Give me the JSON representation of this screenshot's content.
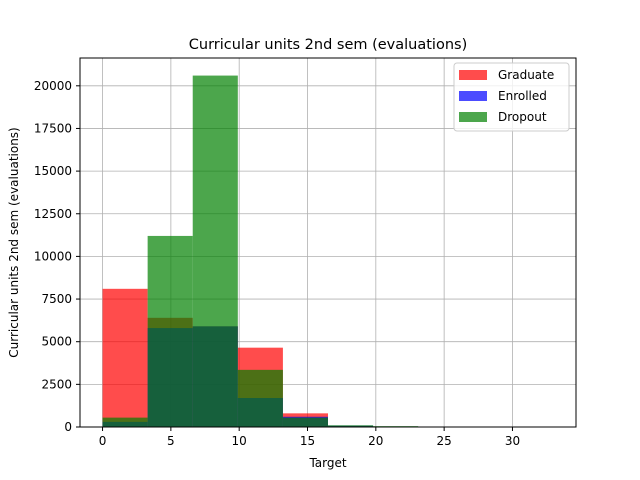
{
  "chart_data": {
    "type": "bar",
    "title": "Curricular units 2nd sem (evaluations)",
    "xlabel": "Target",
    "ylabel": "Curricular units 2nd sem (evaluations)",
    "xlim": [
      -1.65,
      34.65
    ],
    "ylim": [
      0,
      21630
    ],
    "xticks": [
      0,
      5,
      10,
      15,
      20,
      25,
      30
    ],
    "yticks": [
      0,
      2500,
      5000,
      7500,
      10000,
      12500,
      15000,
      17500,
      20000
    ],
    "grid": true,
    "legend_position": "top-right",
    "series": [
      {
        "name": "Graduate",
        "color": "#ff0000",
        "opacity": 0.7,
        "edges": [
          0,
          3.3,
          6.6,
          9.9,
          13.2,
          16.5,
          19.8,
          23.1,
          26.4,
          29.7,
          33
        ],
        "values": [
          8100,
          6400,
          5900,
          4650,
          800,
          60,
          10,
          0,
          0,
          0
        ]
      },
      {
        "name": "Enrolled",
        "color": "#0000ff",
        "opacity": 0.7,
        "edges": [
          0,
          3.3,
          6.6,
          9.9,
          13.2,
          16.5,
          19.8,
          23.1,
          26.4,
          29.7,
          33
        ],
        "values": [
          300,
          5800,
          5900,
          1700,
          600,
          80,
          10,
          0,
          0,
          0
        ]
      },
      {
        "name": "Dropout",
        "color": "#008000",
        "opacity": 0.7,
        "edges": [
          0,
          3.3,
          6.6,
          9.9,
          13.2,
          16.5,
          19.8,
          23.1,
          26.4,
          29.7,
          33
        ],
        "values": [
          550,
          11200,
          20600,
          3350,
          550,
          100,
          50,
          0,
          0,
          0
        ]
      }
    ]
  }
}
